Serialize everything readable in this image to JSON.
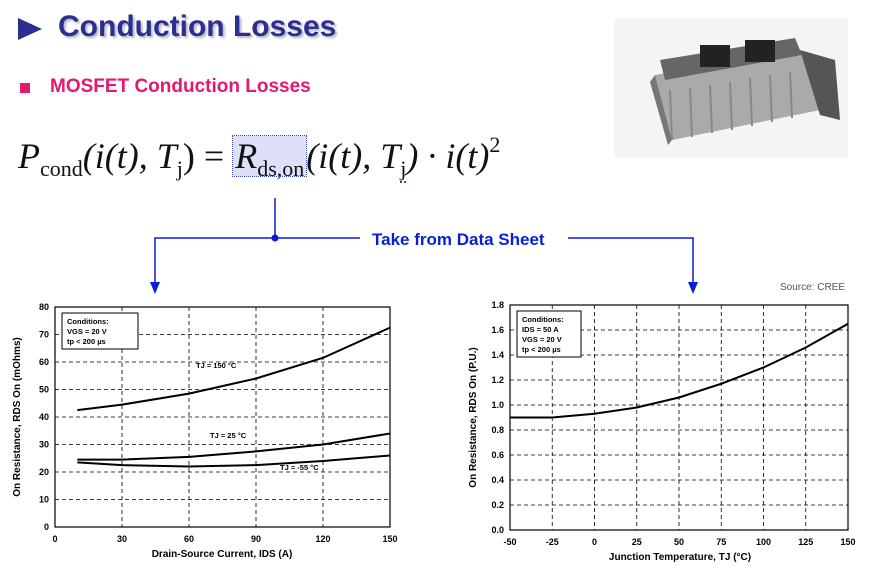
{
  "slide": {
    "title": "Conduction Losses",
    "subtitle": "MOSFET Conduction Losses",
    "formula": [
      {
        "text": "P",
        "style": "italic"
      },
      {
        "text": "cond",
        "style": "sub"
      },
      {
        "text": "(i(t), T",
        "style": "italic"
      },
      {
        "text": "j",
        "style": "sub"
      },
      {
        "text": ") = ",
        "style": "normal"
      },
      {
        "text": "R",
        "style": "italic"
      },
      {
        "text": "ds,on",
        "style": "sub"
      },
      {
        "text": "(i(t), T",
        "style": "italic"
      },
      {
        "text": "j",
        "style": "sub"
      },
      {
        "text": ") · i(t)",
        "style": "italic"
      },
      {
        "text": "2",
        "style": "sup"
      }
    ],
    "callout": "Take from Data Sheet",
    "source": "Source:   CREE"
  },
  "chart_data": [
    {
      "type": "line",
      "xlabel": "Drain-Source Current, IDS (A)",
      "ylabel": "On Resistance, RDS On (mOhms)",
      "conditions": [
        "Conditions:",
        "VGS = 20 V",
        "tp < 200 µs"
      ],
      "x": [
        10,
        30,
        60,
        90,
        120,
        150
      ],
      "series": [
        {
          "name": "TJ = 150 °C",
          "color": "#000000",
          "values": [
            42.5,
            44.5,
            48.5,
            54,
            61.5,
            72.5
          ]
        },
        {
          "name": "TJ = 25 °C",
          "color": "#000000",
          "values": [
            24.5,
            24.5,
            25.5,
            27.5,
            30,
            34
          ]
        },
        {
          "name": "TJ = -55 °C",
          "color": "#000000",
          "values": [
            23.5,
            22.5,
            22,
            22.5,
            24,
            26
          ]
        }
      ],
      "xlim": [
        0,
        150
      ],
      "xticks": [
        0,
        30,
        60,
        90,
        120,
        150
      ],
      "ylim": [
        0,
        80
      ],
      "yticks": [
        0,
        10,
        20,
        30,
        40,
        50,
        60,
        70,
        80
      ],
      "grid": true
    },
    {
      "type": "line",
      "xlabel": "Junction Temperature, TJ (°C)",
      "ylabel": "On Resistance, RDS On (P.U.)",
      "conditions": [
        "Conditions:",
        "IDS = 50 A",
        "VGS = 20 V",
        "tp < 200 µs"
      ],
      "x": [
        -50,
        -25,
        0,
        25,
        50,
        75,
        100,
        125,
        150
      ],
      "series": [
        {
          "color": "#000000",
          "values": [
            0.9,
            0.9,
            0.93,
            0.98,
            1.06,
            1.17,
            1.3,
            1.46,
            1.65
          ]
        }
      ],
      "xlim": [
        -50,
        150
      ],
      "xticks": [
        -50,
        -25,
        0,
        25,
        50,
        75,
        100,
        125,
        150
      ],
      "ylim": [
        0,
        1.8
      ],
      "yticks": [
        {
          "value": 0,
          "label": "0.0"
        },
        0.2,
        0.4,
        0.6,
        0.8,
        {
          "value": 1,
          "label": "1.0"
        },
        1.2,
        1.4,
        1.6,
        1.8
      ],
      "grid": true
    }
  ]
}
